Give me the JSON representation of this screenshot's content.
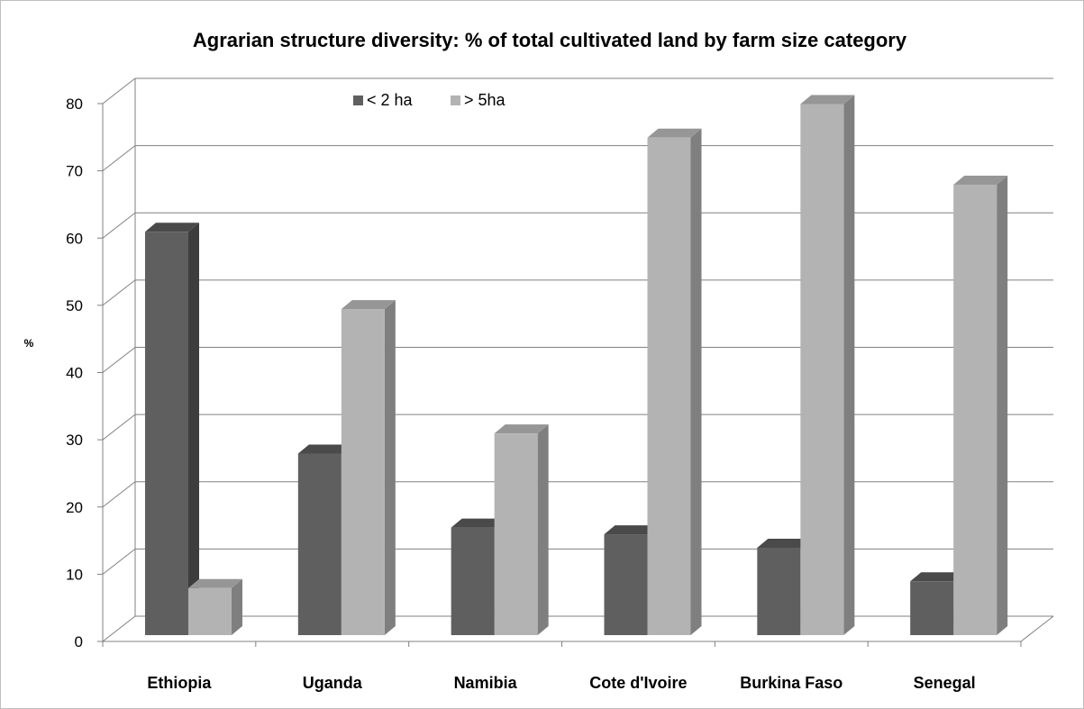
{
  "chart_data": {
    "type": "bar",
    "title": "Agrarian structure diversity: % of total cultivated land by farm size category",
    "ylabel": "%",
    "xlabel": "",
    "categories": [
      "Ethiopia",
      "Uganda",
      "Namibia",
      "Cote d'Ivoire",
      "Burkina Faso",
      "Senegal"
    ],
    "series": [
      {
        "name": "< 2 ha",
        "values": [
          60,
          27,
          16,
          15,
          13,
          8
        ]
      },
      {
        "name": "> 5ha",
        "values": [
          7,
          48.5,
          30,
          74,
          79,
          67
        ]
      }
    ],
    "ylim": [
      0,
      80
    ],
    "yticks": [
      0,
      10,
      20,
      30,
      40,
      50,
      60,
      70,
      80
    ],
    "grid": true,
    "three_d": true,
    "legend_position": "top",
    "colors": {
      "series1_front": "#5f5f5f",
      "series1_top": "#4a4a4a",
      "series1_side": "#3d3d3d",
      "series2_front": "#b3b3b3",
      "series2_top": "#969696",
      "series2_side": "#7f7f7f",
      "grid": "#808080"
    }
  }
}
